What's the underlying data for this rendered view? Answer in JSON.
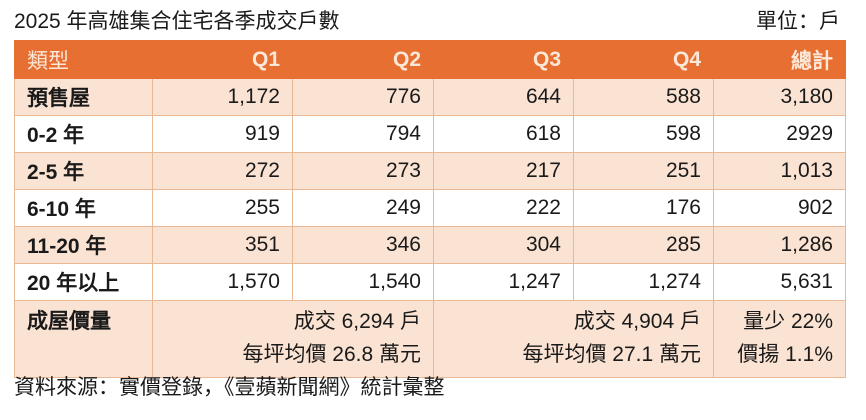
{
  "title": "2025 年高雄集合住宅各季成交戶數",
  "unit_label": "單位：戶",
  "table": {
    "headers": [
      "類型",
      "Q1",
      "Q2",
      "Q3",
      "Q4",
      "總計"
    ],
    "rows": [
      {
        "label": "預售屋",
        "q1": "1,172",
        "q2": "776",
        "q3": "644",
        "q4": "588",
        "total": "3,180"
      },
      {
        "label": "0-2 年",
        "q1": "919",
        "q2": "794",
        "q3": "618",
        "q4": "598",
        "total": "2929"
      },
      {
        "label": "2-5 年",
        "q1": "272",
        "q2": "273",
        "q3": "217",
        "q4": "251",
        "total": "1,013"
      },
      {
        "label": "6-10 年",
        "q1": "255",
        "q2": "249",
        "q3": "222",
        "q4": "176",
        "total": "902"
      },
      {
        "label": "11-20 年",
        "q1": "351",
        "q2": "346",
        "q3": "304",
        "q4": "285",
        "total": "1,286"
      },
      {
        "label": "20 年以上",
        "q1": "1,570",
        "q2": "1,540",
        "q3": "1,247",
        "q4": "1,274",
        "total": "5,631"
      }
    ],
    "summary": {
      "label": "成屋價量",
      "h1_line1": "成交 6,294 戶",
      "h1_line2": "每坪均價 26.8 萬元",
      "h2_line1": "成交 4,904 戶",
      "h2_line2": "每坪均價 27.1 萬元",
      "change_line1": "量少 22%",
      "change_line2": "價揚 1.1%"
    }
  },
  "source": "資料來源：實價登錄，《壹蘋新聞網》統計彙整",
  "colors": {
    "header_bg": "#e86f32",
    "header_text": "#fbe8d8",
    "stripe_bg": "#fbe3d3",
    "border": "#e9b894"
  }
}
